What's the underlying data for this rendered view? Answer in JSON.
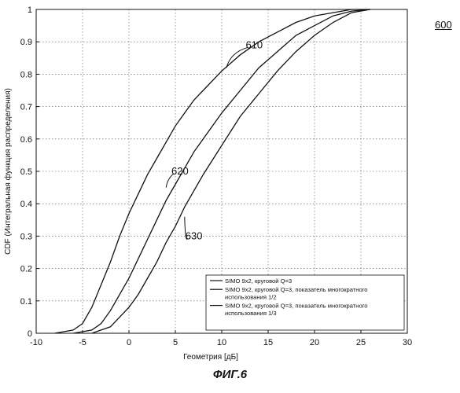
{
  "figure": {
    "number": "600",
    "caption": "ФИГ.6"
  },
  "chart_data": {
    "type": "line",
    "title": "",
    "xlabel": "Геометрия [дБ]",
    "ylabel": "CDF (Интегральная функция распределения)",
    "xlim": [
      -10,
      30
    ],
    "ylim": [
      0,
      1
    ],
    "xticks": [
      -10,
      -5,
      0,
      5,
      10,
      15,
      20,
      25,
      30
    ],
    "yticks": [
      0,
      0.1,
      0.2,
      0.3,
      0.4,
      0.5,
      0.6,
      0.7,
      0.8,
      0.9,
      1
    ],
    "grid": true,
    "legend_position": "bottom-right",
    "series": [
      {
        "name": "SIMO 9x2, круговой Q=3",
        "x": [
          -8,
          -6,
          -5,
          -4,
          -3,
          -2,
          -1,
          0,
          1,
          2,
          3,
          4,
          5,
          6,
          7,
          8,
          10,
          12,
          14,
          16,
          18,
          20,
          22,
          24,
          26
        ],
        "y": [
          0,
          0.01,
          0.03,
          0.08,
          0.15,
          0.22,
          0.3,
          0.37,
          0.43,
          0.49,
          0.54,
          0.59,
          0.64,
          0.68,
          0.72,
          0.75,
          0.81,
          0.86,
          0.9,
          0.93,
          0.96,
          0.98,
          0.99,
          1,
          1
        ]
      },
      {
        "name": "SIMO 9x2, круговой Q=3, показатель многократного использования 1/2",
        "x": [
          -6,
          -4,
          -3,
          -2,
          -1,
          0,
          1,
          2,
          3,
          4,
          5,
          6,
          7,
          8,
          10,
          12,
          14,
          16,
          18,
          20,
          22,
          24,
          26
        ],
        "y": [
          0,
          0.01,
          0.03,
          0.07,
          0.12,
          0.17,
          0.23,
          0.29,
          0.35,
          0.41,
          0.46,
          0.51,
          0.56,
          0.6,
          0.68,
          0.75,
          0.82,
          0.87,
          0.92,
          0.95,
          0.98,
          0.995,
          1
        ]
      },
      {
        "name": "SIMO 9x2, круговой Q=3, показатель многократного использования 1/3",
        "x": [
          -4,
          -2,
          -1,
          0,
          1,
          2,
          3,
          4,
          5,
          6,
          7,
          8,
          10,
          12,
          14,
          16,
          18,
          20,
          22,
          24,
          26
        ],
        "y": [
          0,
          0.02,
          0.05,
          0.08,
          0.12,
          0.17,
          0.22,
          0.28,
          0.33,
          0.39,
          0.44,
          0.49,
          0.58,
          0.67,
          0.74,
          0.81,
          0.87,
          0.92,
          0.96,
          0.99,
          1
        ]
      }
    ],
    "annotations": [
      {
        "text": "610",
        "series": 0,
        "point": [
          10.5,
          0.82
        ],
        "label_at": [
          13.5,
          0.89
        ]
      },
      {
        "text": "620",
        "series": 1,
        "point": [
          4.0,
          0.45
        ],
        "label_at": [
          5.5,
          0.5
        ]
      },
      {
        "text": "630",
        "series": 2,
        "point": [
          6.0,
          0.36
        ],
        "label_at": [
          7.0,
          0.3
        ]
      }
    ]
  }
}
